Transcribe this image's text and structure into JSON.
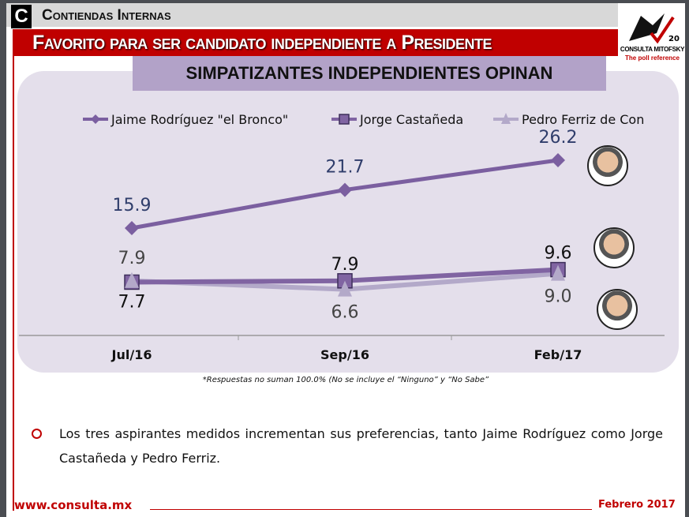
{
  "header": {
    "badge": "C",
    "section": "Contiendas Internas",
    "title": "Favorito para ser candidato independiente a Presidente",
    "subtitle": "SIMPATIZANTES INDEPENDIENTES OPINAN"
  },
  "logo": {
    "name": "CONSULTA MITOFSKY",
    "tagline": "The poll reference",
    "anniversary": "20 años"
  },
  "chart_data": {
    "type": "line",
    "categories": [
      "Jul/16",
      "Sep/16",
      "Feb/17"
    ],
    "legend_position": "top",
    "grid": false,
    "series": [
      {
        "name": "Jaime Rodríguez  \"el Bronco\"",
        "values": [
          15.9,
          21.7,
          26.2
        ],
        "color": "#7b5fa0",
        "marker": "diamond",
        "labels": [
          "15.9",
          "21.7",
          "26.2"
        ]
      },
      {
        "name": "Jorge Castañeda",
        "values": [
          7.7,
          7.9,
          9.6
        ],
        "color": "#8064a2",
        "marker": "square",
        "labels": [
          "7.7",
          "7.9",
          "9.6"
        ]
      },
      {
        "name": "Pedro Ferriz de Con",
        "values": [
          7.9,
          6.6,
          9.0
        ],
        "color": "#b3a9c9",
        "marker": "triangle",
        "labels": [
          "7.9",
          "6.6",
          "9.0"
        ]
      }
    ]
  },
  "note": "*Respuestas no suman 100.0% (No se incluye el “Ninguno” y “No Sabe”",
  "bullet": "Los tres aspirantes medidos incrementan sus preferencias, tanto Jaime Rodríguez como Jorge Castañeda y Pedro Ferriz.",
  "footer": {
    "url": "www.consulta.mx",
    "date": "Febrero 2017"
  }
}
